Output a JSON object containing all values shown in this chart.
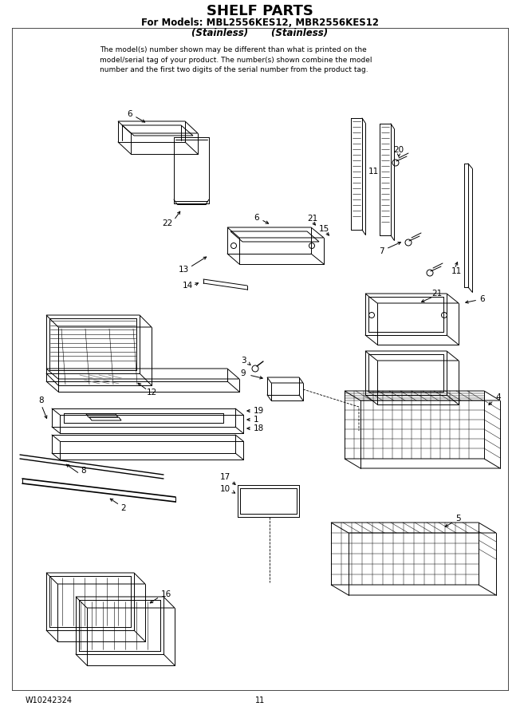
{
  "title": "SHELF PARTS",
  "subtitle1": "For Models: MBL2556KES12, MBR2556KES12",
  "subtitle2": "(Stainless)       (Stainless)",
  "disclaimer": "The model(s) number shown may be different than what is printed on the\nmodel/serial tag of your product. The number(s) shown combine the model\nnumber and the first two digits of the serial number from the product tag.",
  "part_number": "W10242324",
  "page_number": "11",
  "bg_color": "#ffffff",
  "text_color": "#000000"
}
